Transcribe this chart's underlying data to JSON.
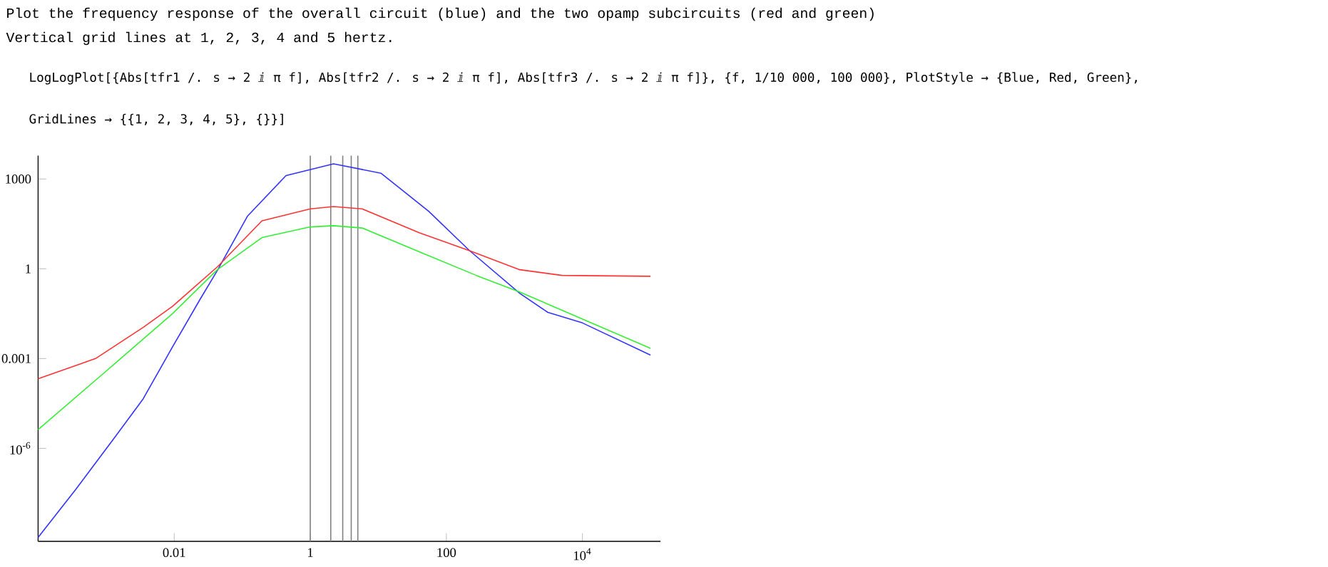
{
  "chart_data": {
    "type": "line",
    "title": "Plot the frequency response of the overall circuit (blue) and the two opamp subcircuits (red and green)",
    "subtitle": "Vertical grid lines at 1, 2, 3, 4 and 5 hertz.",
    "annotations": [
      "LogLogPlot[{Abs[tfr1 /. s → 2 ⅈ π f], Abs[tfr2 /. s → 2 ⅈ π f], Abs[tfr3 /. s → 2 ⅈ π f]}, {f, 1/10 000, 100 000}, PlotStyle → {Blue, Red, Green},",
      "GridLines → {{1, 2, 3, 4, 5}, {}}]"
    ],
    "log": "xy",
    "line_style": "solid",
    "xlim": [
      0.0001,
      140000
    ],
    "ylim": [
      7.8e-10,
      6000
    ],
    "xticks": [
      0.01,
      1,
      100,
      {
        "value": 10000,
        "label": "10$^{4}$"
      }
    ],
    "yticks": [
      {
        "value": 1e-06,
        "label": "10$^{-6}$"
      },
      0.001,
      1,
      1000
    ],
    "ref_lines": [
      {
        "axis": "x",
        "value": 1,
        "color": "#808080"
      },
      {
        "axis": "x",
        "value": 2,
        "color": "#808080"
      },
      {
        "axis": "x",
        "value": 3,
        "color": "#808080"
      },
      {
        "axis": "x",
        "value": 4,
        "color": "#808080"
      },
      {
        "axis": "x",
        "value": 5,
        "color": "#808080"
      }
    ],
    "series": [
      {
        "color": "#3333ff",
        "x": [
          0.0001,
          0.00036,
          0.00135,
          0.0035,
          0.0095,
          0.024,
          0.043,
          0.12,
          0.44,
          2.2,
          11,
          55,
          220,
          1200,
          3100,
          10000,
          100000
        ],
        "values": [
          1.05e-09,
          4.3e-08,
          2.4e-06,
          4.5e-05,
          0.0025,
          0.095,
          0.87,
          58,
          1300,
          3200,
          1550,
          83,
          4,
          0.15,
          0.035,
          0.0155,
          0.0013
        ]
      },
      {
        "color": "#ff3333",
        "x": [
          0.0001,
          0.0007,
          0.0035,
          0.0095,
          0.043,
          0.195,
          1,
          2.2,
          5.8,
          40,
          220,
          1200,
          5000,
          100000
        ],
        "values": [
          0.00021,
          0.001,
          0.011,
          0.056,
          1.15,
          40,
          100,
          120,
          100,
          16,
          4,
          0.93,
          0.6,
          0.56
        ]
      },
      {
        "color": "#33ee33",
        "x": [
          0.0001,
          0.001,
          0.0095,
          0.043,
          0.195,
          1,
          2.2,
          5.8,
          40,
          275,
          1200,
          100000
        ],
        "values": [
          4.2e-06,
          0.00038,
          0.032,
          0.93,
          11,
          25,
          27.5,
          23,
          3.7,
          0.6,
          0.166,
          0.0022
        ]
      }
    ]
  }
}
